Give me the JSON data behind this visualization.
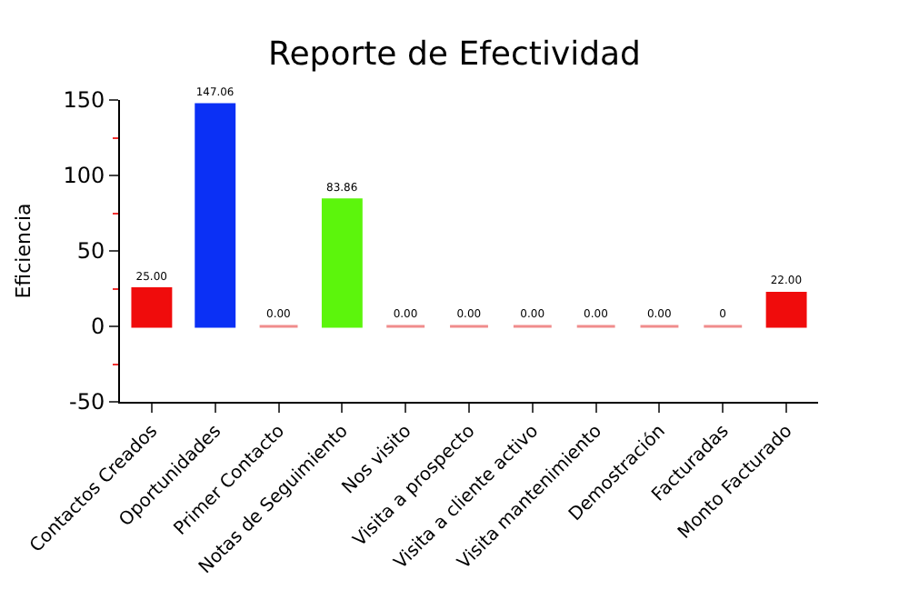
{
  "chart_data": {
    "type": "bar",
    "title": "Reporte de Efectividad",
    "ylabel": "Eficiencia",
    "categories": [
      "Contactos Creados",
      "Oportunidades",
      "Primer Contacto",
      "Notas de Seguimiento",
      "Nos visito",
      "Visita a prospecto",
      "Visita a cliente activo",
      "Visita mantenimiento",
      "Demostración",
      "Facturadas",
      "Monto Facturado"
    ],
    "values": [
      25,
      147.06,
      0,
      83.86,
      0,
      0,
      0,
      0,
      0,
      0,
      22
    ],
    "colors": [
      "#f00c0c",
      "#0b30f5",
      "#f08c8c",
      "#5cf50c",
      "#f08c8c",
      "#f08c8c",
      "#f08c8c",
      "#f08c8c",
      "#f08c8c",
      "#f08c8c",
      "#f00c0c"
    ],
    "value_labels": [
      "25.00",
      "147.06",
      "0.00",
      "83.86",
      "0.00",
      "0.00",
      "0.00",
      "0.00",
      "0.00",
      "0",
      "22.00"
    ],
    "ylim": [
      -50,
      150
    ],
    "yticks": [
      -50,
      0,
      50,
      100,
      150
    ],
    "legend": false
  }
}
